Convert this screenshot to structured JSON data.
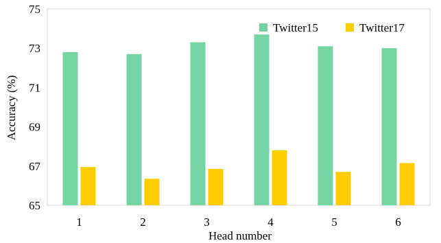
{
  "chart_data": {
    "type": "bar",
    "xlabel": "Head number",
    "ylabel": "Accuracy (%)",
    "ylim": [
      65,
      75
    ],
    "yticks": [
      65,
      67,
      69,
      71,
      73,
      75
    ],
    "categories": [
      "1",
      "2",
      "3",
      "4",
      "5",
      "6"
    ],
    "series": [
      {
        "name": "Twitter15",
        "color": "#76d3a4",
        "values": [
          72.8,
          72.7,
          73.3,
          73.7,
          73.1,
          73.0
        ]
      },
      {
        "name": "Twitter17",
        "color": "#ffcc00",
        "values": [
          66.95,
          66.35,
          66.85,
          67.8,
          66.7,
          67.15
        ]
      }
    ],
    "grid": false,
    "legend_position": "top-right"
  }
}
